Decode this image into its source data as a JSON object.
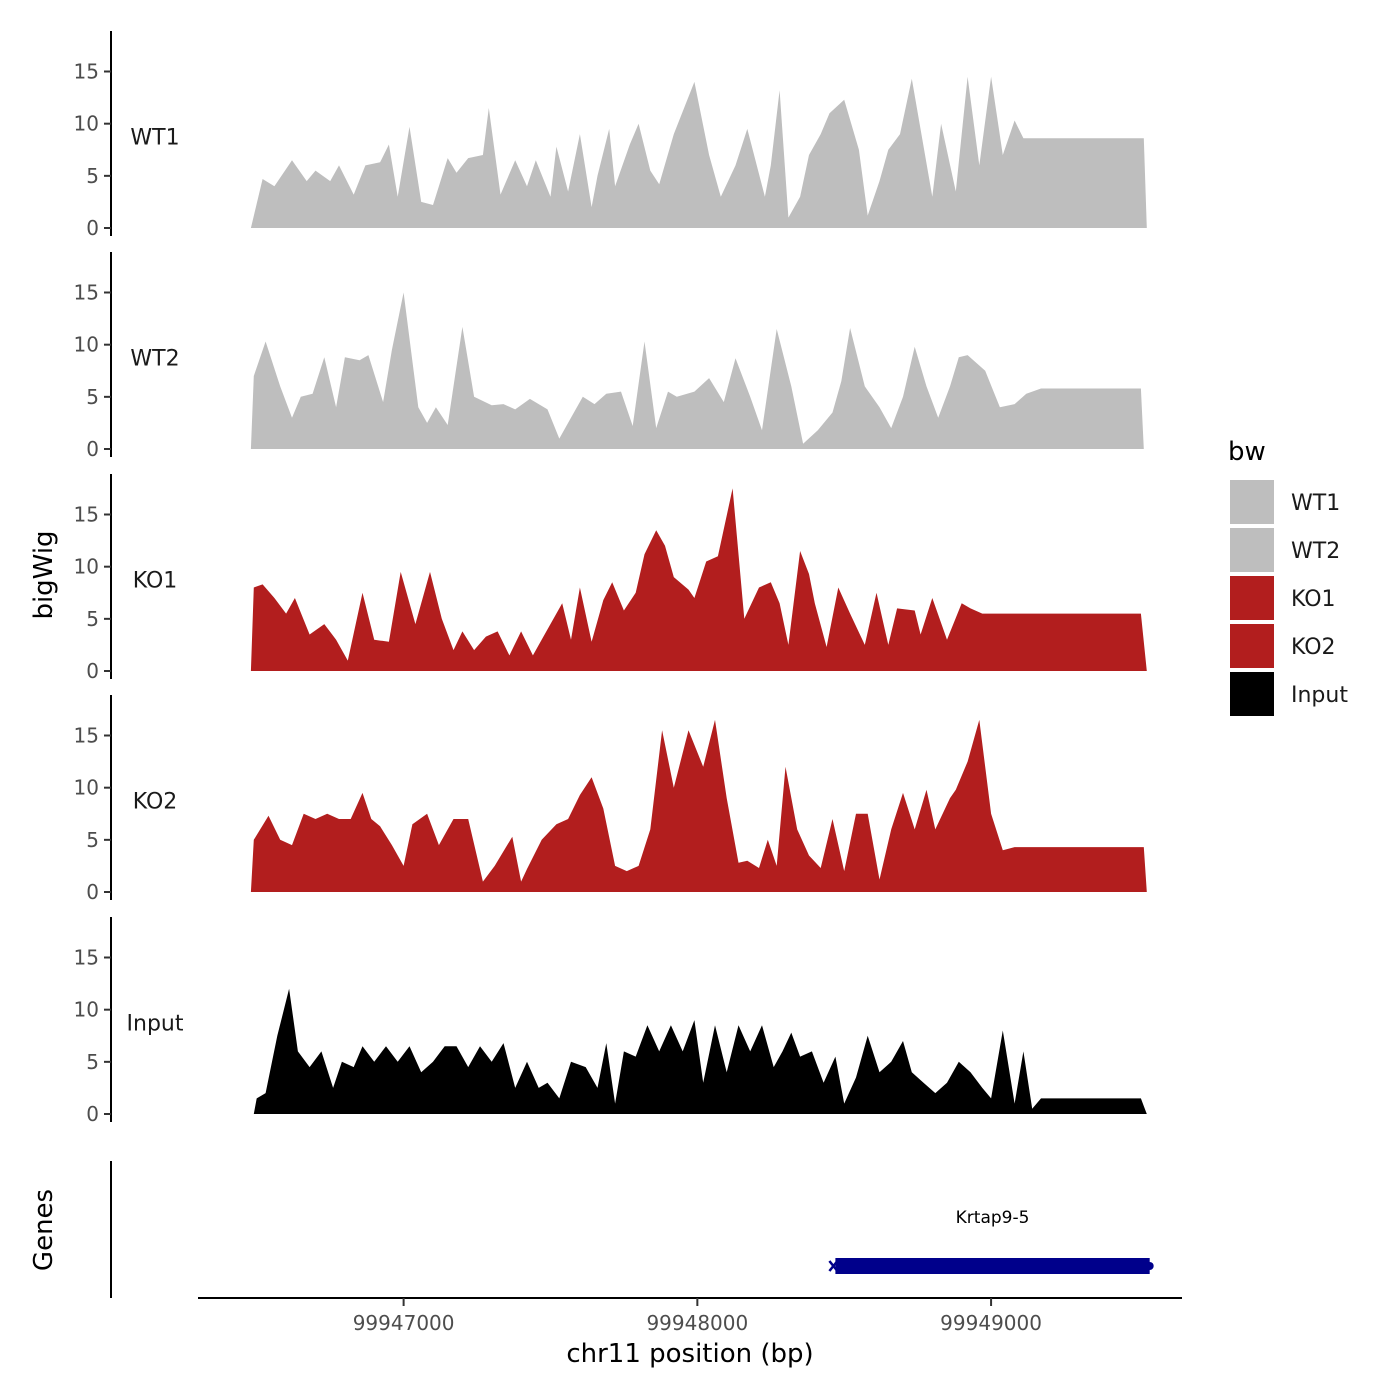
{
  "chart_data": {
    "type": "area",
    "title": "",
    "ylabel": "bigWig",
    "xlabel": "chr11 position (bp)",
    "genes_panel_label": "Genes",
    "xlim": [
      99946300,
      99949650
    ],
    "ylim": [
      0,
      18.5
    ],
    "y_ticks": [
      0,
      5,
      10,
      15
    ],
    "x_ticks": [
      99947000,
      99948000,
      99949000
    ],
    "x_tick_labels": [
      "99947000",
      "99948000",
      "99949000"
    ],
    "legend": {
      "title": "bw",
      "position": "right",
      "entries": [
        {
          "label": "WT1",
          "color": "#bebebe"
        },
        {
          "label": "WT2",
          "color": "#bebebe"
        },
        {
          "label": "KO1",
          "color": "#b21e1e"
        },
        {
          "label": "KO2",
          "color": "#b21e1e"
        },
        {
          "label": "Input",
          "color": "#000000"
        }
      ]
    },
    "series": [
      {
        "name": "WT1",
        "color": "#bebebe",
        "x": [
          99946480,
          99946520,
          99946560,
          99946620,
          99946670,
          99946700,
          99946750,
          99946780,
          99946830,
          99946870,
          99946920,
          99946950,
          99946980,
          99947020,
          99947060,
          99947100,
          99947150,
          99947180,
          99947220,
          99947270,
          99947290,
          99947330,
          99947380,
          99947420,
          99947450,
          99947500,
          99947520,
          99947560,
          99947600,
          99947640,
          99947660,
          99947700,
          99947720,
          99947770,
          99947800,
          99947840,
          99947870,
          99947920,
          99947990,
          99948040,
          99948080,
          99948130,
          99948170,
          99948230,
          99948250,
          99948280,
          99948310,
          99948350,
          99948380,
          99948420,
          99948450,
          99948500,
          99948550,
          99948580,
          99948620,
          99948650,
          99948690,
          99948730,
          99948800,
          99948830,
          99948880,
          99948920,
          99948960,
          99949000,
          99949040,
          99949080,
          99949110,
          99949140,
          99949180,
          99949220,
          99949260,
          99949300,
          99949340,
          99949360,
          99949390,
          99949430,
          99949520,
          99949530
        ],
        "values": [
          0,
          4.7,
          4,
          6.5,
          4.5,
          5.5,
          4.5,
          6,
          3.2,
          6,
          6.3,
          8,
          3,
          9.7,
          2.5,
          2.2,
          6.7,
          5.3,
          6.7,
          7,
          11.5,
          3.2,
          6.5,
          4,
          6.5,
          3,
          7.8,
          3.5,
          9,
          2,
          5,
          9.5,
          4,
          8,
          10,
          5.5,
          4.2,
          9,
          14,
          7,
          3,
          6,
          9.5,
          3,
          6,
          13.2,
          1,
          3,
          7,
          9,
          11,
          12.3,
          7.5,
          1.2,
          4.5,
          7.5,
          9,
          14.3,
          3,
          10,
          3.5,
          14.5,
          6,
          14.5,
          7,
          10.3,
          8.6,
          8.6,
          8.6,
          8.6,
          8.6,
          8.6,
          8.6,
          8.6,
          8.6,
          8.6,
          8.6,
          0
        ]
      },
      {
        "name": "WT2",
        "color": "#bebebe",
        "x": [
          99946480,
          99946490,
          99946530,
          99946580,
          99946620,
          99946650,
          99946690,
          99946730,
          99946770,
          99946800,
          99946850,
          99946880,
          99946930,
          99946960,
          99947000,
          99947050,
          99947080,
          99947110,
          99947150,
          99947200,
          99947240,
          99947300,
          99947340,
          99947380,
          99947430,
          99947490,
          99947530,
          99947560,
          99947610,
          99947650,
          99947690,
          99947740,
          99947780,
          99947820,
          99947860,
          99947900,
          99947930,
          99947990,
          99948040,
          99948090,
          99948130,
          99948180,
          99948220,
          99948270,
          99948320,
          99948360,
          99948410,
          99948460,
          99948490,
          99948520,
          99948570,
          99948620,
          99948660,
          99948700,
          99948740,
          99948780,
          99948820,
          99948860,
          99948890,
          99948920,
          99948980,
          99949030,
          99949080,
          99949120,
          99949170,
          99949200,
          99949240,
          99949290,
          99949340,
          99949380,
          99949420,
          99949440,
          99949460,
          99949490,
          99949510,
          99949520
        ],
        "values": [
          0,
          7,
          10.3,
          6,
          3,
          5,
          5.3,
          8.8,
          4,
          8.8,
          8.5,
          9,
          4.5,
          9.5,
          15,
          4,
          2.5,
          4,
          2.3,
          11.7,
          5,
          4.2,
          4.3,
          3.8,
          4.8,
          3.8,
          1,
          2.5,
          5,
          4.3,
          5.3,
          5.5,
          2.2,
          10.3,
          2,
          5.5,
          5,
          5.5,
          6.8,
          4.5,
          8.7,
          5,
          1.8,
          11.5,
          6,
          0.5,
          1.8,
          3.5,
          6.5,
          11.6,
          6,
          4,
          2,
          5,
          9.8,
          6,
          3,
          6,
          8.8,
          9,
          7.5,
          4,
          4.3,
          5.3,
          5.8,
          5.8,
          5.8,
          5.8,
          5.8,
          5.8,
          5.8,
          5.8,
          5.8,
          5.8,
          5.8,
          0
        ]
      },
      {
        "name": "KO1",
        "color": "#b21e1e",
        "x": [
          99946480,
          99946490,
          99946520,
          99946560,
          99946600,
          99946630,
          99946680,
          99946730,
          99946770,
          99946810,
          99946860,
          99946900,
          99946950,
          99946990,
          99947040,
          99947090,
          99947130,
          99947170,
          99947200,
          99947240,
          99947280,
          99947320,
          99947360,
          99947400,
          99947440,
          99947480,
          99947540,
          99947570,
          99947600,
          99947640,
          99947680,
          99947710,
          99947750,
          99947790,
          99947820,
          99947860,
          99947890,
          99947920,
          99947970,
          99947990,
          99948030,
          99948070,
          99948120,
          99948160,
          99948210,
          99948250,
          99948280,
          99948310,
          99948350,
          99948380,
          99948400,
          99948440,
          99948480,
          99948520,
          99948570,
          99948610,
          99948650,
          99948680,
          99948740,
          99948760,
          99948800,
          99948850,
          99948900,
          99948930,
          99948970,
          99949010,
          99949050,
          99949080,
          99949110,
          99949140,
          99949170,
          99949210,
          99949250,
          99949290,
          99949320,
          99949350,
          99949380,
          99949410,
          99949440,
          99949470,
          99949510,
          99949530
        ],
        "values": [
          0,
          8,
          8.3,
          7,
          5.5,
          7,
          3.5,
          4.5,
          3,
          1,
          7.5,
          3,
          2.8,
          9.5,
          4.5,
          9.5,
          5,
          2,
          3.8,
          2,
          3.3,
          3.8,
          1.5,
          3.8,
          1.5,
          3.5,
          6.5,
          3,
          8,
          2.8,
          6.8,
          8.5,
          5.8,
          7.5,
          11.2,
          13.5,
          12,
          9,
          7.8,
          7,
          10.5,
          11,
          17.5,
          5,
          8,
          8.5,
          6.5,
          2.5,
          11.5,
          9.3,
          6.5,
          2.3,
          8,
          5.5,
          2.5,
          7.5,
          2.5,
          6,
          5.8,
          3.5,
          7,
          3,
          6.5,
          6,
          5.5,
          5.5,
          5.5,
          5.5,
          5.5,
          5.5,
          5.5,
          5.5,
          5.5,
          5.5,
          5.5,
          5.5,
          5.5,
          5.5,
          5.5,
          5.5,
          5.5,
          0
        ]
      },
      {
        "name": "KO2",
        "color": "#b21e1e",
        "x": [
          99946480,
          99946490,
          99946540,
          99946580,
          99946620,
          99946660,
          99946700,
          99946740,
          99946780,
          99946820,
          99946860,
          99946890,
          99946920,
          99946960,
          99947000,
          99947030,
          99947080,
          99947120,
          99947170,
          99947220,
          99947270,
          99947310,
          99947370,
          99947400,
          99947420,
          99947470,
          99947520,
          99947560,
          99947600,
          99947640,
          99947680,
          99947720,
          99947760,
          99947800,
          99947840,
          99947880,
          99947920,
          99947970,
          99948020,
          99948060,
          99948100,
          99948140,
          99948170,
          99948210,
          99948240,
          99948270,
          99948300,
          99948340,
          99948380,
          99948420,
          99948460,
          99948500,
          99948540,
          99948580,
          99948620,
          99948660,
          99948700,
          99948740,
          99948780,
          99948810,
          99948860,
          99948880,
          99948920,
          99948960,
          99949000,
          99949040,
          99949080,
          99949120,
          99949170,
          99949210,
          99949240,
          99949280,
          99949320,
          99949380,
          99949430,
          99949470,
          99949520,
          99949530
        ],
        "values": [
          0,
          5,
          7.3,
          5,
          4.5,
          7.5,
          7,
          7.5,
          7,
          7,
          9.5,
          7,
          6.3,
          4.5,
          2.5,
          6.5,
          7.5,
          4.5,
          7,
          7,
          1,
          2.5,
          5.3,
          1,
          2.2,
          5,
          6.5,
          7,
          9.3,
          11,
          8,
          2.5,
          2,
          2.5,
          6,
          15.5,
          10,
          15.5,
          12,
          16.5,
          9,
          2.8,
          3,
          2.3,
          5,
          2.5,
          12,
          6,
          3.5,
          2.3,
          7,
          2,
          7.5,
          7.5,
          1.2,
          6,
          9.5,
          6,
          9.8,
          6,
          9,
          9.8,
          12.5,
          16.5,
          7.5,
          4,
          4.3,
          4.3,
          4.3,
          4.3,
          4.3,
          4.3,
          4.3,
          4.3,
          4.3,
          4.3,
          4.3,
          0
        ]
      },
      {
        "name": "Input",
        "color": "#000000",
        "x": [
          99946490,
          99946500,
          99946530,
          99946570,
          99946610,
          99946640,
          99946680,
          99946720,
          99946760,
          99946790,
          99946830,
          99946860,
          99946900,
          99946940,
          99946980,
          99947020,
          99947060,
          99947100,
          99947140,
          99947180,
          99947220,
          99947260,
          99947300,
          99947340,
          99947380,
          99947420,
          99947460,
          99947490,
          99947530,
          99947570,
          99947620,
          99947660,
          99947690,
          99947720,
          99947750,
          99947790,
          99947830,
          99947870,
          99947910,
          99947950,
          99947990,
          99948020,
          99948060,
          99948100,
          99948140,
          99948180,
          99948220,
          99948260,
          99948290,
          99948320,
          99948350,
          99948390,
          99948430,
          99948470,
          99948500,
          99948540,
          99948580,
          99948620,
          99948660,
          99948700,
          99948730,
          99948770,
          99948810,
          99948850,
          99948890,
          99948930,
          99948970,
          99949000,
          99949040,
          99949080,
          99949110,
          99949140,
          99949170,
          99949200,
          99949230,
          99949270,
          99949300,
          99949330,
          99949360,
          99949400,
          99949440,
          99949480,
          99949510,
          99949530
        ],
        "values": [
          0,
          1.5,
          2,
          7.5,
          12,
          6,
          4.5,
          6,
          2.5,
          5,
          4.5,
          6.5,
          5,
          6.5,
          5,
          6.5,
          4,
          5,
          6.5,
          6.5,
          4.5,
          6.5,
          5,
          6.8,
          2.5,
          5,
          2.5,
          3,
          1.5,
          5,
          4.5,
          2.5,
          6.8,
          1,
          6,
          5.5,
          8.5,
          6,
          8.5,
          6,
          9,
          3,
          8.5,
          4,
          8.5,
          6,
          8.5,
          4.5,
          6,
          7.8,
          5.5,
          6,
          3,
          5.5,
          1,
          3.5,
          7.5,
          4,
          5,
          7,
          4,
          3,
          2,
          3,
          5,
          4,
          2.5,
          1.5,
          8,
          1,
          6,
          0.5,
          1.5,
          1.5,
          1.5,
          1.5,
          1.5,
          1.5,
          1.5,
          1.5,
          1.5,
          1.5,
          1.5,
          0
        ]
      }
    ],
    "genes": [
      {
        "name": "Krtap9-5",
        "start": 99948470,
        "end": 99949540,
        "strand": "-",
        "color": "#00008b"
      }
    ]
  }
}
